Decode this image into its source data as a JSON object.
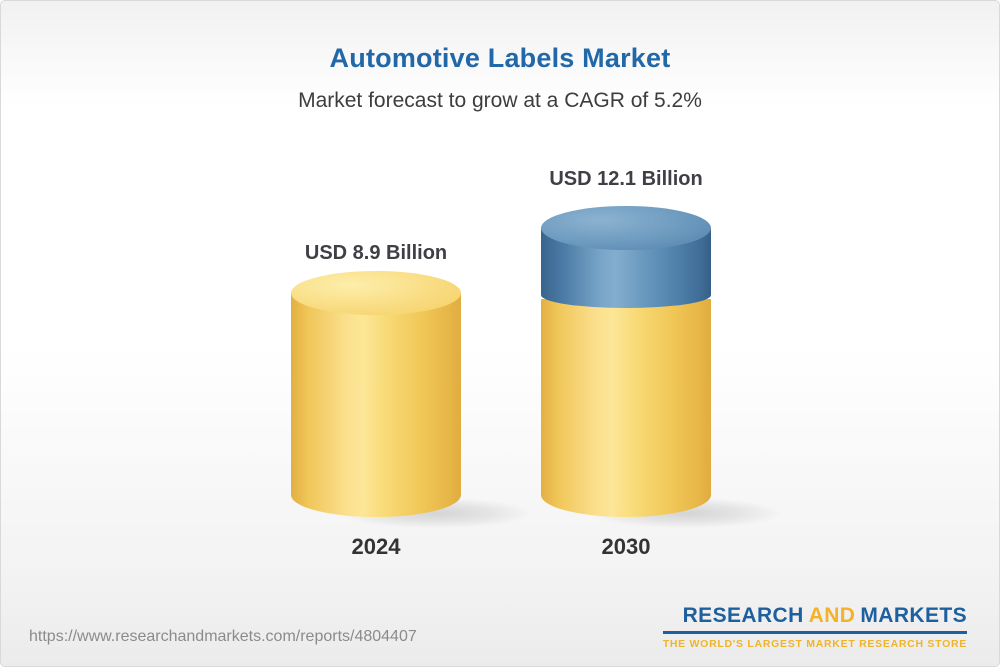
{
  "chart_data": {
    "type": "bar",
    "variant": "3d-cylinder-infographic",
    "title": "Automotive Labels Market",
    "subtitle": "Market forecast to grow at a CAGR of 5.2%",
    "cagr_percent": 5.2,
    "unit": "USD Billion",
    "categories": [
      "2024",
      "2030"
    ],
    "values": [
      8.9,
      12.1
    ],
    "value_labels": [
      "USD 8.9 Billion",
      "USD 12.1 Billion"
    ],
    "growth_segment_value": 3.2,
    "legend_position": "none",
    "grid": false,
    "axis_labels_visible": false,
    "colors": {
      "base_segment": "#F5CE63",
      "growth_segment": "#4E7FA9",
      "title_text": "#2268A8",
      "value_label_text": "#3F3F46"
    }
  },
  "footer": {
    "url": "https://www.researchandmarkets.com/reports/4804407",
    "logo": {
      "research": "RESEARCH",
      "and": "AND",
      "markets": "MARKETS",
      "tagline": "THE WORLD'S LARGEST MARKET RESEARCH STORE"
    }
  }
}
